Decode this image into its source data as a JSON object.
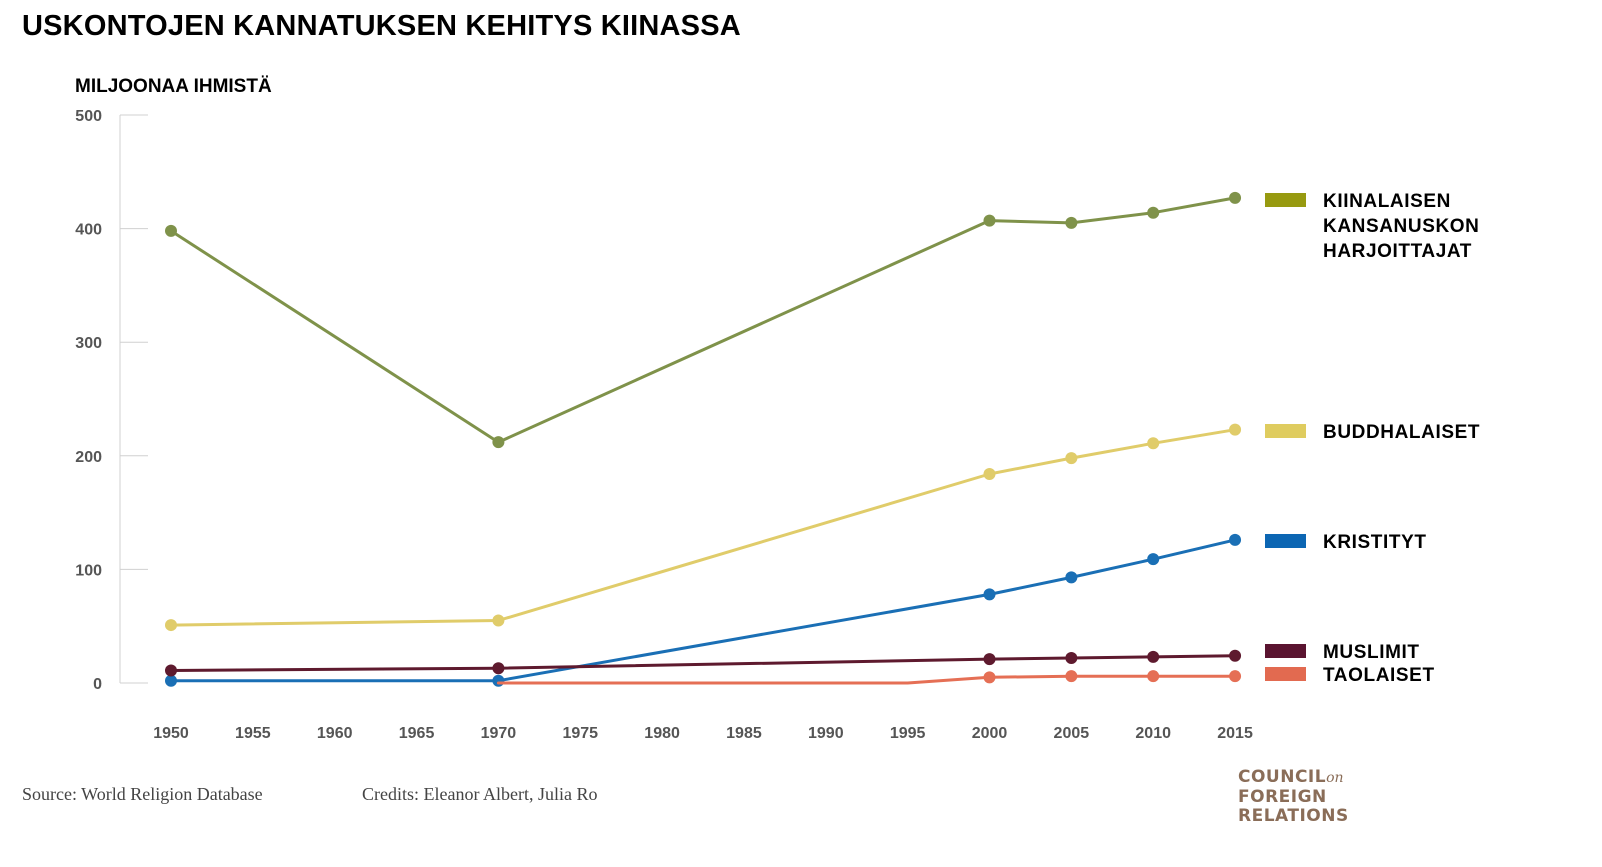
{
  "header": {
    "title": "USKONTOJEN KANNATUKSEN KEHITYS KIINASSA",
    "unit_label": "MILJOONAA IHMISTÄ"
  },
  "footer": {
    "source": "Source: World Religion Database",
    "credits": "Credits: Eleanor Albert, Julia Ro"
  },
  "logo": {
    "line1": "COUNCIL",
    "line1_suffix": "on",
    "line2": "FOREIGN",
    "line3": "RELATIONS"
  },
  "chart_data": {
    "type": "line",
    "title": "USKONTOJEN KANNATUKSEN KEHITYS KIINASSA",
    "ylabel": "MILJOONAA IHMISTÄ",
    "xlabel": "",
    "ylim": [
      0,
      500
    ],
    "yticks": [
      0,
      100,
      200,
      300,
      400,
      500
    ],
    "xticks": [
      1950,
      1955,
      1960,
      1965,
      1970,
      1975,
      1980,
      1985,
      1990,
      1995,
      2000,
      2005,
      2010,
      2015
    ],
    "grid": false,
    "legend_position": "right",
    "series": [
      {
        "name": "KIINALAISEN KANSANUSKON HARJOITTAJAT",
        "legend_lines": [
          "KIINALAISEN",
          "KANSANUSKON",
          "HARJOITTAJAT"
        ],
        "color": "#7f924a",
        "swatch_color": "#979a10",
        "x": [
          1950,
          1970,
          2000,
          2005,
          2010,
          2015
        ],
        "values": [
          398,
          212,
          407,
          405,
          414,
          427
        ]
      },
      {
        "name": "BUDDHALAISET",
        "legend_lines": [
          "BUDDHALAISET"
        ],
        "color": "#e0cc6a",
        "swatch_color": "#dfcc5f",
        "x": [
          1950,
          1970,
          2000,
          2005,
          2010,
          2015
        ],
        "values": [
          51,
          55,
          184,
          198,
          211,
          223
        ]
      },
      {
        "name": "KRISTITYT",
        "legend_lines": [
          "KRISTITYT"
        ],
        "color": "#1a6fb5",
        "swatch_color": "#0c66b3",
        "x": [
          1950,
          1970,
          2000,
          2005,
          2010,
          2015
        ],
        "values": [
          2,
          2,
          78,
          93,
          109,
          126
        ]
      },
      {
        "name": "MUSLIMIT",
        "legend_lines": [
          "MUSLIMIT"
        ],
        "color": "#5e1a2e",
        "swatch_color": "#5a1430",
        "x": [
          1950,
          1970,
          2000,
          2005,
          2010,
          2015
        ],
        "values": [
          11,
          13,
          21,
          22,
          23,
          24
        ]
      },
      {
        "name": "TAOLAISET",
        "legend_lines": [
          "TAOLAISET"
        ],
        "color": "#e56f55",
        "swatch_color": "#e26a50",
        "x": [
          1970,
          1995,
          2000,
          2005,
          2010,
          2015
        ],
        "values": [
          0,
          0,
          5,
          6,
          6,
          6
        ],
        "markers": [
          false,
          false,
          true,
          true,
          true,
          true
        ]
      }
    ]
  }
}
